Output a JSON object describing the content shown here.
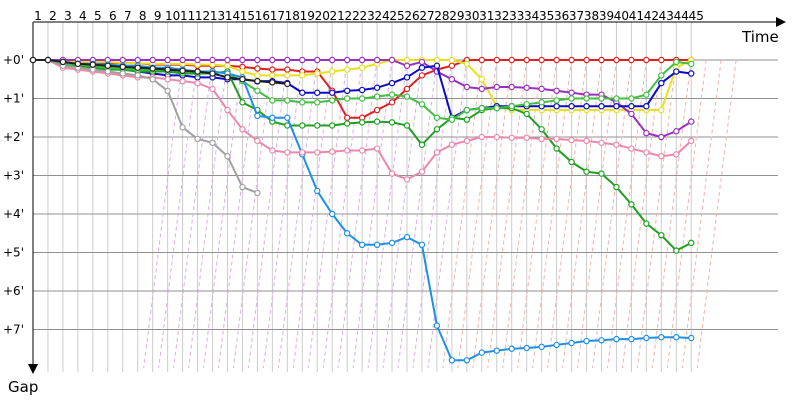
{
  "chart_data": {
    "type": "line",
    "xlabel": "Time",
    "ylabel": "Gap",
    "grid": true,
    "x_ticks": [
      "1",
      "2",
      "3",
      "4",
      "5",
      "6",
      "7",
      "8",
      "9",
      "10",
      "11",
      "12",
      "13",
      "14",
      "15",
      "16",
      "17",
      "18",
      "19",
      "20",
      "21",
      "22",
      "23",
      "24",
      "25",
      "26",
      "27",
      "28",
      "29",
      "30",
      "31",
      "32",
      "33",
      "34",
      "35",
      "36",
      "37",
      "38",
      "39",
      "40",
      "41",
      "42",
      "43",
      "44",
      "45"
    ],
    "y_ticks": [
      "+0'",
      "+1'",
      "+2'",
      "+3'",
      "+4'",
      "+5'",
      "+6'",
      "+7'"
    ],
    "ylim": [
      0,
      8
    ],
    "series": [
      {
        "color": "#e02020",
        "values": [
          0,
          0,
          0.08,
          0.08,
          0.08,
          0.08,
          0.08,
          0.08,
          0.12,
          0.12,
          0.12,
          0.15,
          0.15,
          0.15,
          0.18,
          0.22,
          0.25,
          0.25,
          0.3,
          0.3,
          0.8,
          1.5,
          1.5,
          1.3,
          1.1,
          0.75,
          0.4,
          0.25,
          0.15,
          0,
          0,
          0,
          0,
          0,
          0,
          0,
          0,
          0,
          0,
          0,
          0,
          0,
          0,
          0,
          0
        ]
      },
      {
        "color": "#e8e020",
        "values": [
          0,
          0,
          0.05,
          0.05,
          0.05,
          0.05,
          0.08,
          0.08,
          0.1,
          0.1,
          0.1,
          0.12,
          0.12,
          0.15,
          0.3,
          0.4,
          0.4,
          0.4,
          0.4,
          0.35,
          0.3,
          0.25,
          0.2,
          0.1,
          0,
          0,
          0,
          0,
          0,
          0.1,
          0.5,
          1.2,
          1.3,
          1.3,
          1.3,
          1.3,
          1.3,
          1.3,
          1.3,
          1.3,
          1.3,
          1.3,
          1.3,
          0.2,
          0
        ]
      },
      {
        "color": "#9a30c0",
        "values": [
          0,
          0,
          0,
          0,
          0,
          0,
          0,
          0,
          0,
          0,
          0,
          0,
          0,
          0,
          0,
          0,
          0,
          0,
          0,
          0,
          0,
          0,
          0,
          0,
          0,
          0.15,
          0.05,
          0.3,
          0.5,
          0.7,
          0.75,
          0.7,
          0.7,
          0.72,
          0.75,
          0.8,
          0.85,
          0.9,
          0.9,
          1.1,
          1.4,
          1.9,
          2.0,
          1.85,
          1.6
        ]
      },
      {
        "color": "#0a0ac8",
        "values": [
          0,
          0,
          0.1,
          0.12,
          0.15,
          0.2,
          0.25,
          0.3,
          0.35,
          0.4,
          0.4,
          0.45,
          0.45,
          0.5,
          0.5,
          0.55,
          0.55,
          0.6,
          0.85,
          0.85,
          0.85,
          0.8,
          0.78,
          0.72,
          0.6,
          0.45,
          0.2,
          0.15,
          1.5,
          1.3,
          1.25,
          1.2,
          1.2,
          1.2,
          1.2,
          1.2,
          1.2,
          1.2,
          1.2,
          1.2,
          1.2,
          1.2,
          0.6,
          0.3,
          0.35
        ]
      },
      {
        "color": "#20a020",
        "values": [
          0,
          0,
          0.1,
          0.15,
          0.2,
          0.25,
          0.25,
          0.3,
          0.3,
          0.3,
          0.35,
          0.35,
          0.35,
          0.3,
          1.1,
          1.3,
          1.6,
          1.7,
          1.7,
          1.7,
          1.7,
          1.65,
          1.62,
          1.6,
          1.62,
          1.7,
          2.2,
          1.8,
          1.5,
          1.55,
          1.3,
          1.25,
          1.25,
          1.4,
          1.8,
          2.3,
          2.65,
          2.9,
          2.95,
          3.3,
          3.75,
          4.25,
          4.55,
          4.95,
          4.75
        ]
      },
      {
        "color": "#40c040",
        "values": [
          0,
          0,
          0.1,
          0.12,
          0.15,
          0.2,
          0.22,
          0.25,
          0.25,
          0.25,
          0.3,
          0.3,
          0.3,
          0.35,
          0.55,
          0.8,
          1.05,
          1.05,
          1.1,
          1.1,
          1.05,
          1.0,
          1.0,
          0.95,
          0.9,
          0.95,
          1.15,
          1.5,
          1.55,
          1.3,
          1.25,
          1.25,
          1.2,
          1.15,
          1.1,
          1.05,
          1.0,
          1.0,
          1.0,
          1.0,
          1.0,
          0.9,
          0.4,
          0.05,
          0.1
        ]
      },
      {
        "color": "#1e90e8",
        "values": [
          0,
          0,
          0.05,
          0.1,
          0.1,
          0.12,
          0.15,
          0.15,
          0.2,
          0.2,
          0.25,
          0.3,
          0.3,
          0.35,
          0.45,
          1.45,
          1.5,
          1.5,
          2.45,
          3.4,
          4.0,
          4.5,
          4.8,
          4.8,
          4.75,
          4.6,
          4.8,
          6.9,
          7.8,
          7.8,
          7.6,
          7.55,
          7.5,
          7.48,
          7.45,
          7.4,
          7.35,
          7.3,
          7.28,
          7.25,
          7.25,
          7.22,
          7.2,
          7.2,
          7.22
        ]
      },
      {
        "color": "#ee88aa",
        "values": [
          0,
          0,
          0.2,
          0.25,
          0.3,
          0.35,
          0.4,
          0.45,
          0.45,
          0.5,
          0.55,
          0.6,
          0.75,
          1.3,
          1.8,
          2.1,
          2.35,
          2.4,
          2.4,
          2.4,
          2.38,
          2.35,
          2.35,
          2.3,
          2.95,
          3.1,
          2.9,
          2.4,
          2.2,
          2.1,
          2.0,
          2.0,
          2.02,
          2.02,
          2.05,
          2.05,
          2.08,
          2.1,
          2.15,
          2.2,
          2.3,
          2.4,
          2.5,
          2.45,
          2.1
        ]
      },
      {
        "color": "#a0a0a0",
        "values": [
          0,
          0,
          0.15,
          0.2,
          0.25,
          0.3,
          0.35,
          0.4,
          0.5,
          0.8,
          1.75,
          2.05,
          2.15,
          2.5,
          3.3,
          3.45
        ]
      },
      {
        "color": "#202020",
        "values": [
          0,
          0,
          0.05,
          0.1,
          0.12,
          0.15,
          0.18,
          0.2,
          0.22,
          0.25,
          0.28,
          0.3,
          0.35,
          0.45,
          0.5,
          0.55,
          0.58,
          0.62
        ]
      }
    ]
  }
}
